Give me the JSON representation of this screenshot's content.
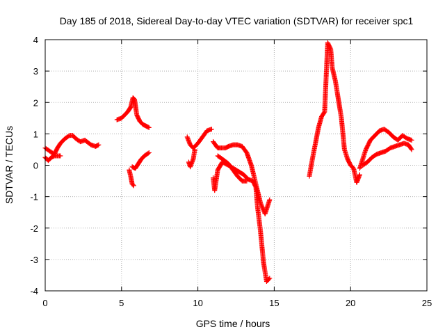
{
  "chart_data": {
    "type": "scatter",
    "title": "Day 185 of 2018, Sidereal Day-to-day VTEC variation (SDTVAR) for receiver spc1",
    "xlabel": "GPS time / hours",
    "ylabel": "SDTVAR / TECUs",
    "xlim": [
      0,
      25
    ],
    "ylim": [
      -4,
      4
    ],
    "xticks": [
      0,
      5,
      10,
      15,
      20,
      25
    ],
    "yticks": [
      -4,
      -3,
      -2,
      -1,
      0,
      1,
      2,
      3,
      4
    ],
    "grid": true,
    "marker": "+",
    "colors": {
      "series": "#ff0000",
      "grid": "#b0b0b0",
      "axes": "#000000"
    },
    "series": [
      {
        "name": "SDTVAR",
        "segments": [
          {
            "x": [
              0.0,
              0.3,
              0.6,
              0.8,
              1.0,
              1.3,
              1.6,
              1.8,
              2.0,
              2.3,
              2.6,
              3.0,
              3.3,
              3.5
            ],
            "y": [
              0.55,
              0.45,
              0.35,
              0.55,
              0.7,
              0.85,
              0.95,
              0.95,
              0.85,
              0.75,
              0.8,
              0.65,
              0.6,
              0.65
            ]
          },
          {
            "x": [
              0.0,
              0.2,
              0.4,
              0.6,
              0.8,
              1.0
            ],
            "y": [
              0.25,
              0.15,
              0.25,
              0.3,
              0.3,
              0.3
            ]
          },
          {
            "x": [
              4.7,
              5.0,
              5.2,
              5.4,
              5.6,
              5.75,
              5.85,
              6.0,
              6.2,
              6.4,
              6.6,
              6.8
            ],
            "y": [
              1.45,
              1.5,
              1.6,
              1.7,
              1.85,
              2.15,
              2.1,
              1.6,
              1.4,
              1.3,
              1.25,
              1.2
            ]
          },
          {
            "x": [
              5.5,
              5.6,
              5.7,
              5.8
            ],
            "y": [
              -0.15,
              -0.35,
              -0.6,
              -0.65
            ]
          },
          {
            "x": [
              5.7,
              5.9,
              6.1,
              6.3,
              6.5,
              6.8
            ],
            "y": [
              -0.05,
              -0.1,
              0.05,
              0.2,
              0.3,
              0.4
            ]
          },
          {
            "x": [
              9.3,
              9.5,
              9.7,
              10.0,
              10.3,
              10.6,
              10.9
            ],
            "y": [
              0.9,
              0.65,
              0.55,
              0.7,
              0.9,
              1.1,
              1.15
            ]
          },
          {
            "x": [
              9.4,
              9.5,
              9.7,
              9.8
            ],
            "y": [
              0.1,
              -0.05,
              0.2,
              0.5
            ]
          },
          {
            "x": [
              11.0,
              11.3,
              11.6,
              11.8,
              12.0,
              12.3,
              12.6,
              12.9,
              13.2,
              13.5,
              13.8,
              14.1,
              14.4,
              14.7
            ],
            "y": [
              0.75,
              0.55,
              0.55,
              0.55,
              0.6,
              0.65,
              0.65,
              0.6,
              0.4,
              0.0,
              -0.6,
              -1.2,
              -1.55,
              -1.1
            ]
          },
          {
            "x": [
              11.0,
              11.1,
              11.3,
              11.6,
              12.0,
              12.5,
              13.0,
              13.3,
              13.6,
              13.8,
              13.9,
              14.1,
              14.3,
              14.5,
              14.7
            ],
            "y": [
              -0.4,
              -0.8,
              -0.15,
              0.1,
              0.0,
              -0.15,
              -0.3,
              -0.45,
              -0.5,
              -0.7,
              -1.3,
              -2.1,
              -3.1,
              -3.7,
              -3.6
            ]
          },
          {
            "x": [
              11.3,
              11.6,
              12.0,
              12.3,
              12.6,
              12.9,
              13.2
            ],
            "y": [
              0.3,
              0.2,
              0.05,
              -0.15,
              -0.35,
              -0.5,
              -0.5
            ]
          },
          {
            "x": [
              17.3,
              17.5,
              17.7,
              17.9,
              18.1,
              18.3,
              18.5,
              18.7,
              18.8,
              19.0,
              19.2,
              19.4,
              19.6,
              19.8,
              20.0,
              20.2,
              20.4,
              20.6
            ],
            "y": [
              -0.35,
              0.2,
              0.7,
              1.2,
              1.55,
              1.7,
              3.9,
              3.7,
              3.1,
              2.7,
              2.1,
              1.5,
              0.5,
              0.2,
              0.0,
              -0.1,
              -0.55,
              -0.3
            ]
          },
          {
            "x": [
              20.6,
              20.8,
              21.0,
              21.3,
              21.6,
              21.9,
              22.2,
              22.5,
              22.8,
              23.1,
              23.4,
              23.7,
              24.0
            ],
            "y": [
              -0.1,
              0.2,
              0.5,
              0.8,
              0.95,
              1.1,
              1.15,
              1.05,
              0.9,
              0.8,
              0.95,
              0.85,
              0.8
            ]
          },
          {
            "x": [
              20.8,
              21.1,
              21.4,
              21.7,
              22.0,
              22.3,
              22.6,
              22.9,
              23.2,
              23.5,
              23.8,
              24.0
            ],
            "y": [
              0.0,
              0.1,
              0.25,
              0.35,
              0.4,
              0.45,
              0.55,
              0.6,
              0.65,
              0.7,
              0.65,
              0.5
            ]
          }
        ]
      }
    ]
  }
}
